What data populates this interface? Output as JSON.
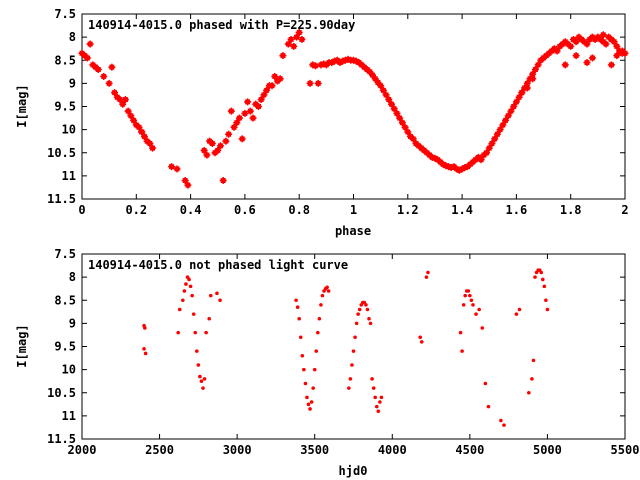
{
  "chart_data": [
    {
      "type": "scatter",
      "title": "140914-4015.0 phased with P=225.90day",
      "xlabel": "phase",
      "ylabel": "I[mag]",
      "xlim": [
        0,
        2
      ],
      "ylim": [
        7.5,
        11.5
      ],
      "y_inverted": true,
      "x_ticks": [
        "0",
        "0.2",
        "0.4",
        "0.6",
        "0.8",
        "1",
        "1.2",
        "1.4",
        "1.6",
        "1.8",
        "2"
      ],
      "y_ticks": [
        "7.5",
        "8",
        "8.5",
        "9",
        "9.5",
        "10",
        "10.5",
        "11",
        "11.5"
      ],
      "grid": false,
      "marker_color": "#ff0000",
      "series": [
        {
          "x": [
            0.0,
            0.01,
            0.02,
            0.04,
            0.05,
            0.06,
            0.08,
            0.1,
            0.12,
            0.13,
            0.14,
            0.15,
            0.17,
            0.18,
            0.19,
            0.2,
            0.21,
            0.22,
            0.23,
            0.24,
            0.25,
            0.33,
            0.35,
            0.38,
            0.39,
            0.45,
            0.46,
            0.47,
            0.48,
            0.49,
            0.5,
            0.51,
            0.53,
            0.54,
            0.56,
            0.57,
            0.58,
            0.6,
            0.62,
            0.64,
            0.66,
            0.67,
            0.68,
            0.7,
            0.72,
            0.74,
            0.78,
            0.79,
            0.8,
            0.81,
            0.85,
            0.86,
            0.88,
            0.89,
            0.9,
            0.91,
            0.92,
            0.93,
            0.94,
            0.95,
            0.96,
            0.97,
            0.98,
            0.99,
            1.0,
            1.01,
            1.02,
            1.03,
            1.04,
            1.05,
            1.06,
            1.07,
            1.08,
            1.09,
            1.1,
            1.11,
            1.12,
            1.13,
            1.14,
            1.15,
            1.16,
            1.17,
            1.18,
            1.19,
            1.2,
            1.21,
            1.22,
            1.23,
            1.24,
            1.25,
            1.26,
            1.27,
            1.28,
            1.29,
            1.3,
            1.31,
            1.32,
            1.33,
            1.34,
            1.35,
            1.36,
            1.37,
            1.38,
            1.39,
            1.4,
            1.41,
            1.42,
            1.43,
            1.44,
            1.45,
            1.46,
            1.47,
            1.48,
            1.49,
            1.5,
            1.51,
            1.52,
            1.53,
            1.54,
            1.55,
            1.56,
            1.57,
            1.58,
            1.59,
            1.6,
            1.61,
            1.62,
            1.63,
            1.64,
            1.65,
            1.66,
            1.67,
            1.68,
            1.69,
            1.7,
            1.71,
            1.72,
            1.73,
            1.74,
            1.75,
            1.76,
            1.77,
            1.78,
            1.79,
            1.8,
            1.81,
            1.82,
            1.83,
            1.84,
            1.85,
            1.86,
            1.87,
            1.88,
            1.89,
            1.9,
            1.91,
            1.92,
            1.93,
            1.94,
            1.95,
            1.96,
            1.97,
            1.98,
            1.99,
            2.0,
            0.03,
            0.11,
            0.16,
            0.22,
            0.26,
            0.52,
            0.55,
            0.59,
            0.61,
            0.63,
            0.65,
            0.69,
            0.71,
            0.73,
            0.76,
            0.77,
            0.87,
            0.84,
            1.86,
            1.88,
            1.92,
            1.95,
            1.97,
            1.99,
            1.78,
            1.82,
            1.66,
            1.64,
            1.62
          ],
          "y": [
            8.35,
            8.4,
            8.45,
            8.6,
            8.65,
            8.7,
            8.85,
            9.0,
            9.2,
            9.3,
            9.35,
            9.45,
            9.6,
            9.7,
            9.8,
            9.9,
            9.95,
            10.05,
            10.15,
            10.25,
            10.3,
            10.8,
            10.85,
            11.1,
            11.2,
            10.45,
            10.55,
            10.25,
            10.3,
            10.5,
            10.45,
            10.35,
            10.25,
            10.1,
            9.95,
            9.85,
            9.75,
            9.65,
            9.6,
            9.45,
            9.35,
            9.25,
            9.15,
            9.05,
            8.95,
            8.4,
            8.2,
            8.0,
            7.9,
            8.05,
            8.6,
            8.62,
            8.6,
            8.58,
            8.6,
            8.55,
            8.55,
            8.52,
            8.5,
            8.55,
            8.52,
            8.5,
            8.48,
            8.5,
            8.5,
            8.52,
            8.55,
            8.6,
            8.65,
            8.7,
            8.75,
            8.82,
            8.9,
            8.98,
            9.05,
            9.15,
            9.25,
            9.35,
            9.45,
            9.55,
            9.65,
            9.75,
            9.85,
            9.95,
            10.05,
            10.15,
            10.2,
            10.3,
            10.35,
            10.4,
            10.45,
            10.5,
            10.55,
            10.6,
            10.62,
            10.65,
            10.7,
            10.75,
            10.78,
            10.8,
            10.82,
            10.8,
            10.85,
            10.88,
            10.85,
            10.82,
            10.8,
            10.75,
            10.7,
            10.65,
            10.6,
            10.65,
            10.55,
            10.5,
            10.4,
            10.3,
            10.2,
            10.1,
            10.0,
            9.9,
            9.8,
            9.7,
            9.6,
            9.5,
            9.4,
            9.3,
            9.2,
            9.1,
            9.0,
            8.9,
            8.8,
            8.7,
            8.6,
            8.5,
            8.45,
            8.4,
            8.35,
            8.3,
            8.25,
            8.3,
            8.2,
            8.15,
            8.1,
            8.15,
            8.2,
            8.05,
            8.1,
            8.0,
            8.05,
            8.1,
            8.15,
            8.05,
            8.0,
            8.05,
            8.0,
            8.05,
            8.1,
            8.15,
            8.0,
            8.05,
            8.1,
            8.2,
            8.3,
            8.35,
            8.35,
            8.15,
            8.65,
            9.35,
            10.05,
            10.4,
            11.1,
            9.6,
            10.2,
            9.4,
            9.75,
            9.5,
            9.05,
            8.85,
            8.9,
            8.15,
            8.05,
            9.0,
            9.0,
            8.55,
            8.45,
            7.95,
            8.6,
            8.4,
            8.3,
            8.6,
            8.4,
            8.9,
            9.1,
            9.2
          ]
        }
      ]
    },
    {
      "type": "scatter",
      "title": "140914-4015.0 not phased light curve",
      "xlabel": "hjd0",
      "ylabel": "I[mag]",
      "xlim": [
        2000,
        5500
      ],
      "ylim": [
        7.5,
        11.5
      ],
      "y_inverted": true,
      "x_ticks": [
        "2000",
        "2500",
        "3000",
        "3500",
        "4000",
        "4500",
        "5000",
        "5500"
      ],
      "y_ticks": [
        "7.5",
        "8",
        "8.5",
        "9",
        "9.5",
        "10",
        "10.5",
        "11",
        "11.5"
      ],
      "grid": false,
      "marker_color": "#ff0000",
      "series": [
        {
          "x": [
            2400,
            2405,
            2400,
            2410,
            2620,
            2630,
            2650,
            2660,
            2670,
            2680,
            2690,
            2700,
            2710,
            2720,
            2730,
            2740,
            2750,
            2760,
            2770,
            2780,
            2790,
            2800,
            2820,
            2830,
            2870,
            2890,
            3380,
            3390,
            3400,
            3410,
            3420,
            3430,
            3440,
            3450,
            3460,
            3470,
            3480,
            3490,
            3500,
            3510,
            3520,
            3530,
            3540,
            3550,
            3560,
            3570,
            3580,
            3590,
            3720,
            3730,
            3740,
            3750,
            3760,
            3770,
            3780,
            3790,
            3800,
            3810,
            3820,
            3830,
            3840,
            3850,
            3860,
            3870,
            3880,
            3890,
            3900,
            3910,
            3920,
            3930,
            4180,
            4190,
            4220,
            4230,
            4440,
            4450,
            4460,
            4470,
            4480,
            4490,
            4500,
            4510,
            4520,
            4540,
            4560,
            4580,
            4600,
            4620,
            4700,
            4720,
            4800,
            4820,
            4880,
            4900,
            4910,
            4920,
            4930,
            4940,
            4950,
            4960,
            4970,
            4980,
            4990,
            5000
          ],
          "y": [
            9.05,
            9.1,
            9.55,
            9.65,
            9.2,
            8.7,
            8.5,
            8.3,
            8.15,
            8.0,
            8.05,
            8.2,
            8.4,
            8.8,
            9.2,
            9.6,
            9.9,
            10.15,
            10.25,
            10.4,
            10.2,
            9.2,
            8.9,
            8.4,
            8.35,
            8.5,
            8.5,
            8.65,
            8.9,
            9.3,
            9.7,
            10.0,
            10.3,
            10.6,
            10.75,
            10.85,
            10.7,
            10.4,
            10.0,
            9.6,
            9.2,
            8.9,
            8.6,
            8.4,
            8.3,
            8.25,
            8.22,
            8.3,
            10.4,
            10.2,
            9.9,
            9.6,
            9.3,
            9.0,
            8.8,
            8.7,
            8.6,
            8.55,
            8.55,
            8.6,
            8.7,
            8.9,
            9.0,
            10.2,
            10.4,
            10.6,
            10.8,
            10.9,
            10.7,
            10.6,
            9.3,
            9.4,
            8.0,
            7.9,
            9.2,
            9.6,
            8.6,
            8.4,
            8.3,
            8.3,
            8.4,
            8.5,
            8.6,
            8.8,
            8.7,
            9.1,
            10.3,
            10.8,
            11.1,
            11.2,
            8.8,
            8.7,
            10.5,
            10.2,
            9.8,
            8.0,
            7.9,
            7.85,
            7.85,
            7.9,
            8.05,
            8.2,
            8.5,
            8.7
          ]
        }
      ]
    }
  ]
}
